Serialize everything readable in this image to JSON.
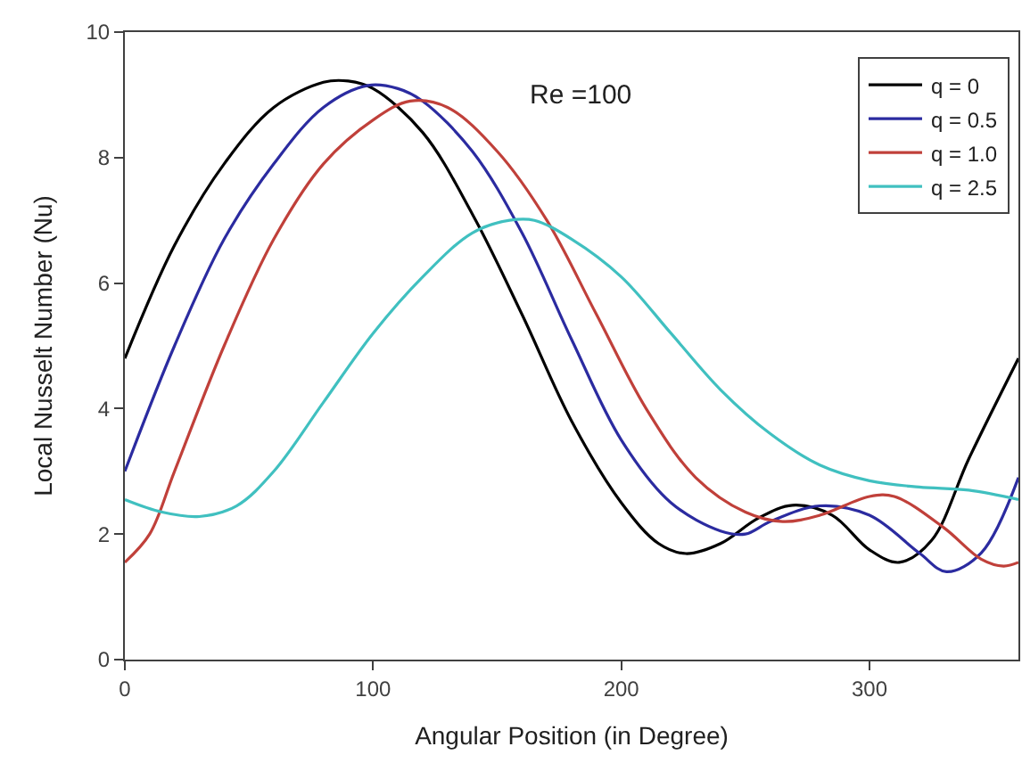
{
  "chart_data": {
    "type": "line",
    "xlabel": "Angular Position (in Degree)",
    "ylabel": "Local Nusselt Number (Nu)",
    "annotations": [
      "Re =100"
    ],
    "xlim": [
      0,
      360
    ],
    "xticks": [
      0,
      100,
      200,
      300
    ],
    "ylim": [
      0,
      10
    ],
    "yticks": [
      0,
      2,
      4,
      6,
      8,
      10
    ],
    "legend": "top right",
    "marker": "none",
    "line_style": "solid",
    "series": [
      {
        "name": "q = 0",
        "color": "#000000",
        "x": [
          0,
          20,
          40,
          60,
          80,
          90,
          100,
          120,
          140,
          160,
          180,
          200,
          215,
          226,
          240,
          255,
          269,
          285,
          300,
          312,
          325,
          340,
          360
        ],
        "values": [
          4.8,
          6.6,
          7.9,
          8.8,
          9.2,
          9.22,
          9.1,
          8.4,
          7.1,
          5.5,
          3.8,
          2.5,
          1.85,
          1.69,
          1.85,
          2.25,
          2.46,
          2.3,
          1.75,
          1.55,
          1.9,
          3.2,
          4.8
        ]
      },
      {
        "name": "q = 0.5",
        "color": "#2b2ba0",
        "x": [
          0,
          20,
          40,
          60,
          80,
          98,
          110,
          120,
          140,
          160,
          180,
          200,
          220,
          240,
          250,
          260,
          280,
          300,
          320,
          331,
          345,
          360
        ],
        "values": [
          3.0,
          5.0,
          6.7,
          7.9,
          8.8,
          9.15,
          9.1,
          8.9,
          8.1,
          6.8,
          5.1,
          3.5,
          2.5,
          2.05,
          2.0,
          2.2,
          2.45,
          2.3,
          1.7,
          1.4,
          1.7,
          2.9
        ]
      },
      {
        "name": "q = 1.0",
        "color": "#c0403a",
        "x": [
          0,
          10,
          20,
          40,
          60,
          80,
          100,
          115,
          130,
          150,
          170,
          190,
          210,
          230,
          250,
          265,
          280,
          300,
          310,
          330,
          345,
          354,
          360
        ],
        "values": [
          1.55,
          2.0,
          3.0,
          5.0,
          6.7,
          7.9,
          8.6,
          8.9,
          8.8,
          8.1,
          7.0,
          5.5,
          4.0,
          2.9,
          2.35,
          2.2,
          2.3,
          2.6,
          2.6,
          2.1,
          1.6,
          1.49,
          1.55
        ]
      },
      {
        "name": "q = 2.5",
        "color": "#40c0c0",
        "x": [
          0,
          15,
          30,
          45,
          60,
          80,
          100,
          120,
          140,
          155,
          165,
          180,
          200,
          220,
          240,
          260,
          280,
          300,
          320,
          340,
          360
        ],
        "values": [
          2.55,
          2.35,
          2.28,
          2.45,
          3.0,
          4.1,
          5.2,
          6.1,
          6.8,
          7.0,
          7.0,
          6.7,
          6.1,
          5.2,
          4.3,
          3.6,
          3.1,
          2.85,
          2.75,
          2.7,
          2.55
        ]
      }
    ]
  }
}
